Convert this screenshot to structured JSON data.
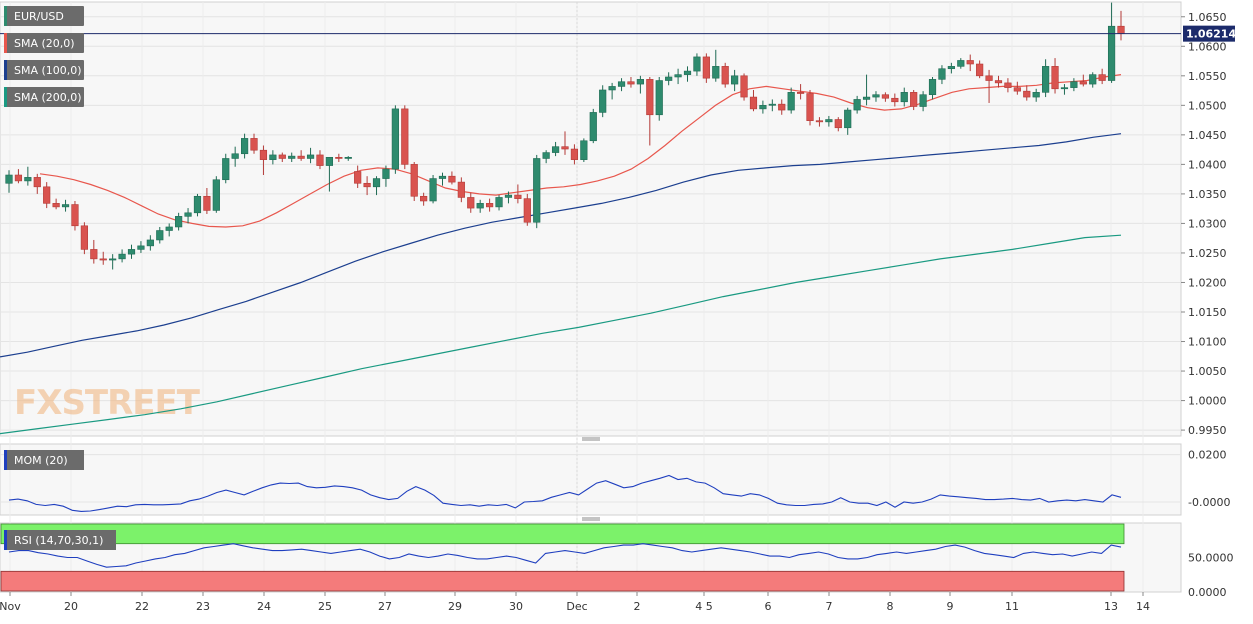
{
  "chart_data": [
    {
      "type": "candlestick",
      "title": "EUR/USD",
      "current_price": 1.06214,
      "current_price_label": "1.06214",
      "ylim": [
        0.994,
        1.0675
      ],
      "y_ticks": [
        "1.0650",
        "1.0600",
        "1.0550",
        "1.0500",
        "1.0450",
        "1.0400",
        "1.0350",
        "1.0300",
        "1.0250",
        "1.0200",
        "1.0150",
        "1.0100",
        "1.0050",
        "1.0000",
        "0.9950"
      ],
      "x_tick_labels": [
        "Nov",
        "20",
        "22",
        "23",
        "24",
        "25",
        "27",
        "29",
        "30",
        "Dec",
        "2",
        "4 5",
        "6",
        "7",
        "8",
        "9",
        "11",
        "13",
        "14"
      ],
      "grid": true,
      "watermark": "FXSTREET",
      "candles": [
        [
          1.0368,
          1.039,
          1.0352,
          1.0382
        ],
        [
          1.0382,
          1.0392,
          1.0368,
          1.0372
        ],
        [
          1.0372,
          1.0396,
          1.0364,
          1.0378
        ],
        [
          1.0378,
          1.0384,
          1.035,
          1.0362
        ],
        [
          1.0362,
          1.037,
          1.0326,
          1.0334
        ],
        [
          1.0334,
          1.0342,
          1.0324,
          1.0328
        ],
        [
          1.0328,
          1.034,
          1.032,
          1.0332
        ],
        [
          1.0332,
          1.0338,
          1.0288,
          1.0296
        ],
        [
          1.0296,
          1.0302,
          1.0248,
          1.0256
        ],
        [
          1.0256,
          1.0272,
          1.0232,
          1.024
        ],
        [
          1.024,
          1.0252,
          1.023,
          1.0238
        ],
        [
          1.0238,
          1.0248,
          1.0222,
          1.024
        ],
        [
          1.024,
          1.0256,
          1.0234,
          1.0248
        ],
        [
          1.0248,
          1.0264,
          1.024,
          1.0256
        ],
        [
          1.0256,
          1.027,
          1.025,
          1.0262
        ],
        [
          1.0262,
          1.028,
          1.0254,
          1.0272
        ],
        [
          1.0272,
          1.0294,
          1.0266,
          1.0288
        ],
        [
          1.0288,
          1.03,
          1.0278,
          1.0294
        ],
        [
          1.0294,
          1.0318,
          1.0288,
          1.0312
        ],
        [
          1.0312,
          1.0326,
          1.03,
          1.0318
        ],
        [
          1.0318,
          1.035,
          1.0312,
          1.0346
        ],
        [
          1.0346,
          1.036,
          1.0316,
          1.0322
        ],
        [
          1.0322,
          1.038,
          1.0318,
          1.0374
        ],
        [
          1.0374,
          1.0418,
          1.0368,
          1.041
        ],
        [
          1.041,
          1.043,
          1.0396,
          1.0418
        ],
        [
          1.0418,
          1.0452,
          1.041,
          1.0444
        ],
        [
          1.0444,
          1.0452,
          1.0418,
          1.0424
        ],
        [
          1.0424,
          1.0432,
          1.0382,
          1.0408
        ],
        [
          1.0408,
          1.0424,
          1.04,
          1.0416
        ],
        [
          1.0416,
          1.042,
          1.0404,
          1.041
        ],
        [
          1.041,
          1.042,
          1.0404,
          1.0414
        ],
        [
          1.0414,
          1.0424,
          1.0406,
          1.041
        ],
        [
          1.041,
          1.0428,
          1.0402,
          1.0416
        ],
        [
          1.0416,
          1.0424,
          1.0392,
          1.0398
        ],
        [
          1.0398,
          1.0412,
          1.0354,
          1.0412
        ],
        [
          1.0412,
          1.0418,
          1.0404,
          1.041
        ],
        [
          1.041,
          1.0414,
          1.0406,
          1.0412
        ],
        [
          1.0388,
          1.0398,
          1.036,
          1.0368
        ],
        [
          1.0368,
          1.038,
          1.0348,
          1.0362
        ],
        [
          1.0362,
          1.038,
          1.0348,
          1.0376
        ],
        [
          1.0376,
          1.0398,
          1.0362,
          1.0392
        ],
        [
          1.0392,
          1.05,
          1.0384,
          1.0494
        ],
        [
          1.0494,
          1.05,
          1.0392,
          1.04
        ],
        [
          1.04,
          1.0404,
          1.0338,
          1.0346
        ],
        [
          1.0346,
          1.0352,
          1.033,
          1.0338
        ],
        [
          1.0338,
          1.0382,
          1.0334,
          1.0376
        ],
        [
          1.0376,
          1.0386,
          1.0364,
          1.038
        ],
        [
          1.038,
          1.0388,
          1.0366,
          1.037
        ],
        [
          1.037,
          1.0378,
          1.0336,
          1.0344
        ],
        [
          1.0344,
          1.0352,
          1.0318,
          1.0326
        ],
        [
          1.0326,
          1.034,
          1.0318,
          1.0334
        ],
        [
          1.0334,
          1.0342,
          1.032,
          1.0328
        ],
        [
          1.0328,
          1.0348,
          1.0322,
          1.0344
        ],
        [
          1.0344,
          1.0354,
          1.0334,
          1.0348
        ],
        [
          1.0348,
          1.0366,
          1.0334,
          1.0342
        ],
        [
          1.0342,
          1.035,
          1.0296,
          1.0302
        ],
        [
          1.0302,
          1.0416,
          1.0292,
          1.041
        ],
        [
          1.041,
          1.0424,
          1.0402,
          1.042
        ],
        [
          1.042,
          1.0438,
          1.0414,
          1.043
        ],
        [
          1.043,
          1.0456,
          1.0416,
          1.0426
        ],
        [
          1.0426,
          1.0434,
          1.04,
          1.0408
        ],
        [
          1.0408,
          1.0444,
          1.0404,
          1.044
        ],
        [
          1.044,
          1.0494,
          1.0436,
          1.0488
        ],
        [
          1.0488,
          1.0534,
          1.048,
          1.0526
        ],
        [
          1.0526,
          1.0538,
          1.051,
          1.0532
        ],
        [
          1.0532,
          1.0546,
          1.0524,
          1.054
        ],
        [
          1.054,
          1.0548,
          1.053,
          1.0536
        ],
        [
          1.0536,
          1.055,
          1.052,
          1.0544
        ],
        [
          1.0544,
          1.0548,
          1.0432,
          1.0484
        ],
        [
          1.0484,
          1.0548,
          1.0474,
          1.0542
        ],
        [
          1.0542,
          1.0556,
          1.0534,
          1.0548
        ],
        [
          1.0548,
          1.0562,
          1.0536,
          1.0552
        ],
        [
          1.0552,
          1.0566,
          1.054,
          1.0558
        ],
        [
          1.0558,
          1.0588,
          1.055,
          1.0582
        ],
        [
          1.0582,
          1.0588,
          1.0538,
          1.0546
        ],
        [
          1.0546,
          1.0594,
          1.054,
          1.0566
        ],
        [
          1.0566,
          1.0572,
          1.053,
          1.0536
        ],
        [
          1.0536,
          1.056,
          1.0524,
          1.055
        ],
        [
          1.055,
          1.0554,
          1.0508,
          1.0514
        ],
        [
          1.0514,
          1.0526,
          1.049,
          1.0494
        ],
        [
          1.0494,
          1.0508,
          1.0486,
          1.05
        ],
        [
          1.05,
          1.051,
          1.049,
          1.0502
        ],
        [
          1.0502,
          1.051,
          1.0484,
          1.0492
        ],
        [
          1.0492,
          1.053,
          1.0486,
          1.0522
        ],
        [
          1.0522,
          1.0536,
          1.051,
          1.052
        ],
        [
          1.052,
          1.0526,
          1.0466,
          1.0474
        ],
        [
          1.0474,
          1.048,
          1.0464,
          1.0472
        ],
        [
          1.0472,
          1.0482,
          1.0464,
          1.0476
        ],
        [
          1.0476,
          1.048,
          1.0456,
          1.0462
        ],
        [
          1.0462,
          1.0496,
          1.045,
          1.0492
        ],
        [
          1.0492,
          1.0516,
          1.0486,
          1.051
        ],
        [
          1.051,
          1.0552,
          1.05,
          1.0514
        ],
        [
          1.0514,
          1.0524,
          1.0506,
          1.0518
        ],
        [
          1.0518,
          1.0522,
          1.0506,
          1.0512
        ],
        [
          1.0512,
          1.052,
          1.0498,
          1.0506
        ],
        [
          1.0506,
          1.053,
          1.0498,
          1.0522
        ],
        [
          1.0522,
          1.0526,
          1.0492,
          1.0498
        ],
        [
          1.0498,
          1.0524,
          1.049,
          1.0518
        ],
        [
          1.0518,
          1.0548,
          1.051,
          1.0544
        ],
        [
          1.0544,
          1.0568,
          1.0536,
          1.0562
        ],
        [
          1.0562,
          1.0572,
          1.0554,
          1.0566
        ],
        [
          1.0566,
          1.058,
          1.0562,
          1.0576
        ],
        [
          1.0576,
          1.0586,
          1.0558,
          1.057
        ],
        [
          1.057,
          1.0576,
          1.0546,
          1.055
        ],
        [
          1.055,
          1.056,
          1.0504,
          1.0542
        ],
        [
          1.0542,
          1.055,
          1.053,
          1.0538
        ],
        [
          1.0538,
          1.0546,
          1.0522,
          1.053
        ],
        [
          1.053,
          1.054,
          1.0518,
          1.0524
        ],
        [
          1.0524,
          1.0534,
          1.0508,
          1.0514
        ],
        [
          1.0514,
          1.0528,
          1.0506,
          1.0522
        ],
        [
          1.0522,
          1.0578,
          1.0514,
          1.0566
        ],
        [
          1.0566,
          1.058,
          1.052,
          1.0528
        ],
        [
          1.0528,
          1.0536,
          1.0518,
          1.053
        ],
        [
          1.053,
          1.0546,
          1.0524,
          1.054
        ],
        [
          1.054,
          1.0552,
          1.0532,
          1.0536
        ],
        [
          1.0536,
          1.0556,
          1.053,
          1.0552
        ],
        [
          1.0552,
          1.0562,
          1.0536,
          1.0542
        ],
        [
          1.0542,
          1.0674,
          1.0538,
          1.0634
        ],
        [
          1.0634,
          1.066,
          1.061,
          1.06214
        ]
      ],
      "sma_series": [
        {
          "name": "SMA (20,0)",
          "color": "#e8574d",
          "values": [
            1.0384,
            1.038,
            1.0374,
            1.0366,
            1.0356,
            1.0344,
            1.033,
            1.0316,
            1.0306,
            1.03,
            1.0295,
            1.0294,
            1.0296,
            1.0304,
            1.0318,
            1.0334,
            1.035,
            1.0366,
            1.038,
            1.039,
            1.0394,
            1.0392,
            1.0384,
            1.0372,
            1.036,
            1.0354,
            1.035,
            1.0348,
            1.0352,
            1.0356,
            1.036,
            1.0362,
            1.0366,
            1.0372,
            1.038,
            1.0392,
            1.041,
            1.0432,
            1.0456,
            1.0478,
            1.05,
            1.0518,
            1.0528,
            1.0532,
            1.0528,
            1.0524,
            1.052,
            1.0514,
            1.0504,
            1.0496,
            1.0492,
            1.0494,
            1.0502,
            1.0512,
            1.0522,
            1.0528,
            1.053,
            1.0532,
            1.0532,
            1.0534,
            1.0538,
            1.054,
            1.0542,
            1.0548,
            1.0552
          ]
        },
        {
          "name": "SMA (100,0)",
          "color": "#1c3f8f",
          "values": [
            1.0074,
            1.0082,
            1.0092,
            1.0102,
            1.011,
            1.0118,
            1.0128,
            1.014,
            1.0154,
            1.0168,
            1.0184,
            1.02,
            1.0218,
            1.0236,
            1.0252,
            1.0266,
            1.028,
            1.0292,
            1.0302,
            1.031,
            1.0318,
            1.0326,
            1.0334,
            1.0344,
            1.0356,
            1.037,
            1.0382,
            1.039,
            1.0394,
            1.0398,
            1.04,
            1.0404,
            1.0408,
            1.0412,
            1.0416,
            1.042,
            1.0424,
            1.0428,
            1.0432,
            1.0438,
            1.0446,
            1.0452
          ]
        },
        {
          "name": "SMA (200,0)",
          "color": "#1a9a82",
          "values": [
            0.9944,
            0.9952,
            0.996,
            0.9968,
            0.9976,
            0.9986,
            0.9998,
            1.0012,
            1.0026,
            1.004,
            1.0054,
            1.0066,
            1.0078,
            1.009,
            1.0102,
            1.0114,
            1.0124,
            1.0136,
            1.0148,
            1.0162,
            1.0176,
            1.0188,
            1.02,
            1.021,
            1.022,
            1.023,
            1.024,
            1.0248,
            1.0256,
            1.0266,
            1.0276,
            1.028
          ]
        }
      ]
    },
    {
      "type": "line",
      "title": "MOM (20)",
      "ylim": [
        -0.0055,
        0.0245
      ],
      "y_ticks": [
        "0.0200",
        "-0.0000"
      ],
      "series": [
        {
          "name": "MOM (20)",
          "color": "#1f3fbf",
          "values": [
            0.0008,
            0.0012,
            0.0005,
            -0.001,
            -0.0015,
            -0.001,
            -0.0018,
            -0.0035,
            -0.004,
            -0.0038,
            -0.0032,
            -0.0025,
            -0.0018,
            -0.002,
            -0.0012,
            -0.001,
            -0.0012,
            -0.0012,
            -0.001,
            -0.0008,
            0.0005,
            0.0012,
            0.0025,
            0.004,
            0.005,
            0.004,
            0.003,
            0.0045,
            0.006,
            0.0072,
            0.008,
            0.0078,
            0.008,
            0.0065,
            0.006,
            0.0062,
            0.0068,
            0.0065,
            0.006,
            0.005,
            0.003,
            0.0018,
            0.001,
            0.0015,
            0.0045,
            0.0065,
            0.005,
            0.0028,
            -0.0005,
            -0.001,
            -0.0015,
            -0.0012,
            -0.0018,
            -0.0012,
            -0.0015,
            -0.001,
            -0.0025,
            0.0,
            0.0002,
            0.0005,
            0.002,
            0.003,
            0.004,
            0.003,
            0.0055,
            0.008,
            0.009,
            0.0075,
            0.006,
            0.0065,
            0.008,
            0.009,
            0.01,
            0.0112,
            0.0095,
            0.01,
            0.0085,
            0.008,
            0.006,
            0.0035,
            0.003,
            0.0025,
            0.0035,
            0.003,
            0.0015,
            -0.0005,
            -0.0012,
            -0.0015,
            -0.0015,
            -0.001,
            -0.0008,
            0.0,
            0.0018,
            0.0,
            -0.0005,
            -0.0005,
            -0.0015,
            0.0,
            -0.0022,
            0.0,
            -0.0005,
            0.0,
            0.0012,
            0.003,
            0.0025,
            0.0022,
            0.0018,
            0.0015,
            0.001,
            0.001,
            0.0012,
            0.0015,
            0.001,
            0.0008,
            0.0015,
            0.0,
            0.0005,
            0.0008,
            0.0005,
            0.001,
            0.0005,
            0.0,
            0.003,
            0.002
          ]
        }
      ]
    },
    {
      "type": "line",
      "title": "RSI (14,70,30,1)",
      "ylim": [
        0,
        100
      ],
      "y_ticks": [
        "50.0000",
        "0.0000"
      ],
      "overbought": 70,
      "oversold": 30,
      "overbought_color": "#7cf26a",
      "oversold_color": "#f47b7b",
      "series": [
        {
          "name": "RSI (14,70,30,1)",
          "color": "#1f3fbf",
          "values": [
            58,
            60,
            60,
            57,
            55,
            52,
            50,
            50,
            45,
            40,
            36,
            37,
            38,
            42,
            45,
            48,
            50,
            54,
            56,
            60,
            64,
            66,
            68,
            70,
            67,
            64,
            62,
            60,
            60,
            61,
            62,
            60,
            58,
            56,
            58,
            60,
            62,
            58,
            52,
            48,
            50,
            55,
            52,
            50,
            52,
            55,
            53,
            50,
            48,
            48,
            50,
            52,
            50,
            46,
            42,
            56,
            58,
            60,
            58,
            56,
            60,
            64,
            66,
            68,
            68,
            70,
            68,
            66,
            64,
            60,
            58,
            60,
            62,
            64,
            62,
            60,
            58,
            55,
            52,
            52,
            50,
            54,
            56,
            58,
            55,
            50,
            48,
            48,
            50,
            54,
            56,
            58,
            56,
            58,
            60,
            62,
            66,
            68,
            65,
            60,
            56,
            54,
            52,
            50,
            56,
            58,
            56,
            54,
            55,
            52,
            55,
            58,
            56,
            68,
            65
          ]
        }
      ]
    }
  ]
}
